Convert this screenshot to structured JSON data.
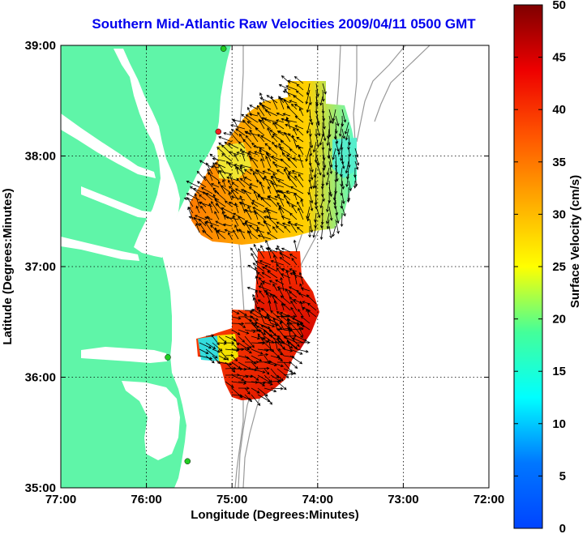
{
  "title": "Southern Mid-Atlantic Raw Velocities 2009/04/11 0500 GMT",
  "axes": {
    "xlabel": "Longitude (Degrees:Minutes)",
    "ylabel": "Latitude (Degrees:Minutes)",
    "x_ticks": [
      "77:00",
      "76:00",
      "75:00",
      "74:00",
      "73:00",
      "72:00"
    ],
    "y_ticks": [
      "39:00",
      "38:00",
      "37:00",
      "36:00",
      "35:00"
    ]
  },
  "colorbar": {
    "label": "Surface Velocity (cm/s)",
    "min": 0,
    "max": 50,
    "ticks": [
      "0",
      "5",
      "10",
      "15",
      "20",
      "25",
      "30",
      "35",
      "40",
      "45",
      "50"
    ],
    "colormap": "jet"
  },
  "map_extent": {
    "lon": [
      -77,
      -72
    ],
    "lat": [
      35,
      39
    ]
  },
  "colors": {
    "land": "#5ff5a8",
    "water": "#ffffff",
    "bathymetry": "#9a9a9a",
    "vectors": "#000000",
    "title": "#0000ee"
  },
  "stations": [
    {
      "lon": -75.1,
      "lat": 38.97,
      "color": "#22cc22"
    },
    {
      "lon": -75.16,
      "lat": 38.22,
      "color": "#ee2222"
    },
    {
      "lon": -75.75,
      "lat": 36.18,
      "color": "#22cc22"
    },
    {
      "lon": -75.52,
      "lat": 35.24,
      "color": "#22cc22"
    }
  ],
  "velocity_regions": [
    {
      "name": "north",
      "level_cm_s": 30
    },
    {
      "name": "central",
      "level_cm_s": 40
    },
    {
      "name": "south",
      "level_cm_s": 45
    }
  ]
}
